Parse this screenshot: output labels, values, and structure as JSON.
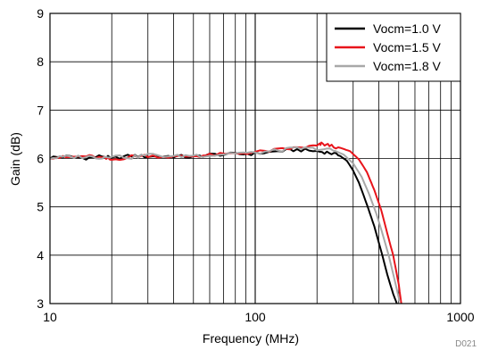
{
  "chart_data": {
    "type": "line",
    "xlabel": "Frequency (MHz)",
    "ylabel": "Gain (dB)",
    "xscale": "log",
    "xlim": [
      10,
      1000
    ],
    "ylim": [
      3,
      9
    ],
    "x_ticks": [
      "10",
      "100",
      "1000"
    ],
    "y_ticks": [
      "3",
      "4",
      "5",
      "6",
      "7",
      "8",
      "9"
    ],
    "grid": true,
    "legend_position": "top-right",
    "figure_code": "D021",
    "series": [
      {
        "name": "Vocm=1.0 V",
        "color": "#000000",
        "x": [
          10,
          12,
          15,
          18,
          20,
          25,
          30,
          40,
          50,
          60,
          80,
          100,
          130,
          160,
          200,
          230,
          260,
          280,
          300,
          320,
          350,
          380,
          410,
          440,
          470,
          490
        ],
        "y": [
          6.02,
          6.04,
          6.01,
          6.05,
          6.0,
          6.06,
          6.04,
          6.05,
          6.03,
          6.08,
          6.09,
          6.1,
          6.15,
          6.18,
          6.15,
          6.12,
          6.05,
          5.95,
          5.75,
          5.5,
          5.05,
          4.6,
          4.1,
          3.6,
          3.2,
          3.0
        ]
      },
      {
        "name": "Vocm=1.5 V",
        "color": "#e8141b",
        "x": [
          10,
          12,
          15,
          18,
          20,
          25,
          30,
          40,
          50,
          60,
          80,
          100,
          130,
          160,
          200,
          210,
          230,
          260,
          290,
          320,
          350,
          380,
          410,
          440,
          470,
          500,
          515
        ],
        "y": [
          6.03,
          6.02,
          6.05,
          6.01,
          5.97,
          6.04,
          6.06,
          6.03,
          6.05,
          6.07,
          6.1,
          6.13,
          6.18,
          6.22,
          6.26,
          6.3,
          6.27,
          6.22,
          6.15,
          5.98,
          5.72,
          5.35,
          4.95,
          4.45,
          4.0,
          3.4,
          3.0
        ]
      },
      {
        "name": "Vocm=1.8 V",
        "color": "#a8a8a8",
        "x": [
          10,
          12,
          15,
          18,
          20,
          25,
          30,
          40,
          50,
          60,
          80,
          100,
          130,
          160,
          200,
          240,
          270,
          300,
          330,
          360,
          390,
          420,
          450,
          480,
          505
        ],
        "y": [
          6.01,
          6.03,
          6.04,
          6.02,
          6.06,
          6.02,
          6.08,
          6.04,
          6.07,
          6.06,
          6.12,
          6.11,
          6.17,
          6.21,
          6.2,
          6.17,
          6.08,
          5.9,
          5.62,
          5.25,
          4.85,
          4.4,
          3.95,
          3.45,
          3.05
        ]
      }
    ]
  }
}
